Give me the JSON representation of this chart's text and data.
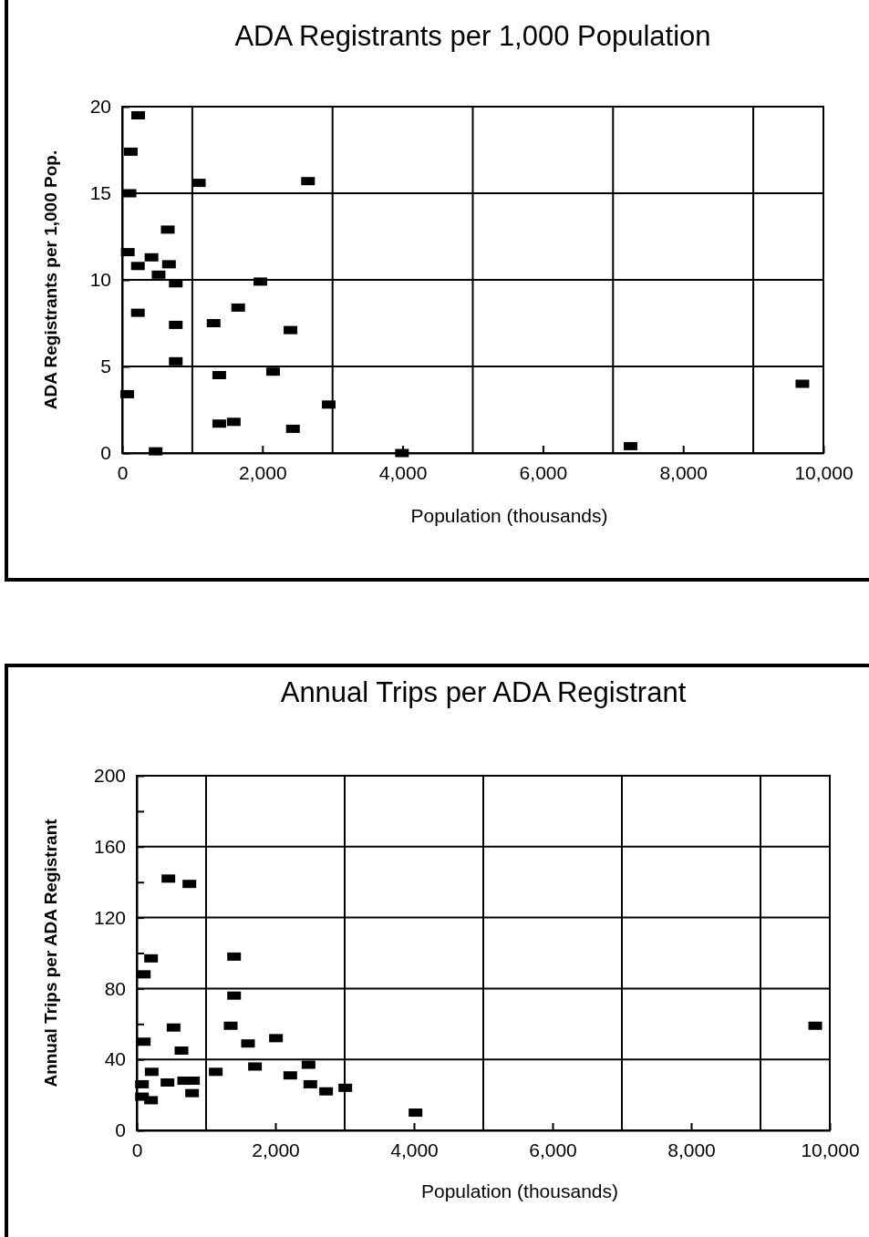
{
  "chart_data": [
    {
      "type": "scatter",
      "title": "ADA Registrants per 1,000 Population",
      "xlabel": "Population (thousands)",
      "ylabel": "ADA Registrants per 1,000 Pop.",
      "marker": "square",
      "grid": "y",
      "color": "#000000",
      "x": [
        228,
        122,
        105,
        1093,
        2650,
        650,
        80,
        418,
        224,
        667,
        519,
        764,
        1970,
        1654,
        224,
        1304,
        764,
        2400,
        764,
        1384,
        2152,
        72,
        2945,
        1591,
        1384,
        2435,
        477,
        3990,
        7250,
        9700
      ],
      "values": [
        19.5,
        17.4,
        15.0,
        15.6,
        15.7,
        12.9,
        11.6,
        11.3,
        10.8,
        10.9,
        10.3,
        9.8,
        9.9,
        8.4,
        8.1,
        7.5,
        7.4,
        7.1,
        5.3,
        4.5,
        4.7,
        3.4,
        2.8,
        1.8,
        1.7,
        1.4,
        0.1,
        0,
        0.4,
        4.0
      ],
      "xlim": [
        0,
        10000
      ],
      "xticks": [
        {
          "value": 0,
          "label": "0"
        },
        {
          "value": 2000,
          "label": "2,000"
        },
        {
          "value": 4000,
          "label": "4,000"
        },
        {
          "value": 6000,
          "label": "6,000"
        },
        {
          "value": 8000,
          "label": "8,000"
        },
        {
          "value": 10000,
          "label": "10,000"
        }
      ],
      "ylim": [
        0,
        20
      ],
      "yticks": [
        0,
        5,
        10,
        15,
        20
      ],
      "ref_lines": [
        {
          "axis": "x",
          "value": 1000
        },
        {
          "axis": "x",
          "value": 3000
        },
        {
          "axis": "x",
          "value": 5000
        },
        {
          "axis": "x",
          "value": 7000
        },
        {
          "axis": "x",
          "value": 9000
        }
      ]
    },
    {
      "type": "scatter",
      "title": "Annual Trips per ADA Registrant",
      "xlabel": "Population (thousands)",
      "ylabel": "Annual Trips per ADA Registrant",
      "marker": "square",
      "grid": "y",
      "color": "#000000",
      "x": [
        456,
        759,
        206,
        1404,
        101,
        1404,
        531,
        1355,
        101,
        1605,
        2009,
        645,
        2478,
        215,
        1706,
        1140,
        2215,
        443,
        75,
        684,
        811,
        2504,
        798,
        2732,
        3009,
        75,
        206,
        4022,
        9790
      ],
      "values": [
        142,
        139,
        97,
        98,
        88,
        76,
        58,
        59,
        50,
        49,
        52,
        45,
        37,
        33,
        36,
        33,
        31,
        27,
        26,
        28,
        28,
        26,
        21,
        22,
        24,
        19,
        17,
        10,
        59
      ],
      "xlim": [
        0,
        10000
      ],
      "xticks": [
        {
          "value": 0,
          "label": "0"
        },
        {
          "value": 2000,
          "label": "2,000"
        },
        {
          "value": 4000,
          "label": "4,000"
        },
        {
          "value": 6000,
          "label": "6,000"
        },
        {
          "value": 8000,
          "label": "8,000"
        },
        {
          "value": 10000,
          "label": "10,000"
        }
      ],
      "ylim": [
        0,
        200
      ],
      "yticks": [
        0,
        {
          "value": 20,
          "label": null
        },
        40,
        {
          "value": 60,
          "label": null
        },
        80,
        {
          "value": 100,
          "label": null
        },
        120,
        {
          "value": 140,
          "label": null
        },
        160,
        {
          "value": 180,
          "label": null
        },
        200
      ],
      "ref_lines": [
        {
          "axis": "x",
          "value": 1000
        },
        {
          "axis": "x",
          "value": 3000
        },
        {
          "axis": "x",
          "value": 5000
        },
        {
          "axis": "x",
          "value": 7000
        },
        {
          "axis": "x",
          "value": 9000
        }
      ]
    }
  ]
}
